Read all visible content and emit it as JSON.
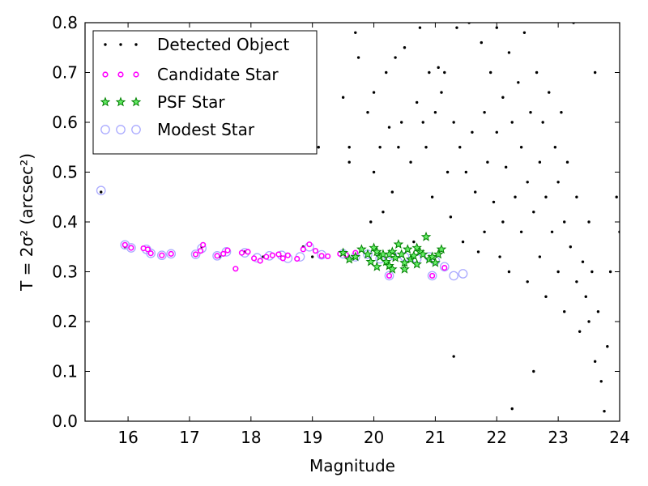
{
  "chart_data": {
    "type": "scatter",
    "title": "",
    "xlabel": "Magnitude",
    "ylabel": "T = 2σ² (arcsec²)",
    "xlim": [
      15.3,
      24.0
    ],
    "ylim": [
      0.0,
      0.8
    ],
    "x_ticks": [
      16,
      17,
      18,
      19,
      20,
      21,
      22,
      23,
      24
    ],
    "y_ticks": [
      0.0,
      0.1,
      0.2,
      0.3,
      0.4,
      0.5,
      0.6,
      0.7,
      0.8
    ],
    "x_tick_labels": [
      "16",
      "17",
      "18",
      "19",
      "20",
      "21",
      "22",
      "23",
      "24"
    ],
    "y_tick_labels": [
      "0.0",
      "0.1",
      "0.2",
      "0.3",
      "0.4",
      "0.5",
      "0.6",
      "0.7",
      "0.8"
    ],
    "grid": false,
    "legend_position": "top-left",
    "legend": [
      {
        "label": "Detected Object",
        "marker": "dot",
        "color": "#000000"
      },
      {
        "label": "Candidate Star",
        "marker": "circle",
        "color": "#ff00ff"
      },
      {
        "label": "PSF Star",
        "marker": "star",
        "color": "#00aa00"
      },
      {
        "label": "Modest Star",
        "marker": "open-circle",
        "color": "#aaaaff"
      }
    ],
    "series": [
      {
        "name": "Detected Object",
        "points": [
          [
            15.56,
            0.46
          ],
          [
            15.95,
            0.35
          ],
          [
            16.05,
            0.35
          ],
          [
            16.28,
            0.345
          ],
          [
            16.35,
            0.34
          ],
          [
            16.55,
            0.333
          ],
          [
            16.7,
            0.335
          ],
          [
            17.1,
            0.335
          ],
          [
            17.2,
            0.35
          ],
          [
            17.5,
            0.33
          ],
          [
            17.75,
            0.305
          ],
          [
            17.9,
            0.34
          ],
          [
            18.2,
            0.33
          ],
          [
            18.5,
            0.33
          ],
          [
            18.85,
            0.35
          ],
          [
            19.0,
            0.33
          ],
          [
            19.25,
            0.33
          ],
          [
            19.1,
            0.55
          ],
          [
            19.5,
            0.65
          ],
          [
            19.6,
            0.52
          ],
          [
            19.6,
            0.55
          ],
          [
            19.7,
            0.78
          ],
          [
            19.75,
            0.73
          ],
          [
            19.9,
            0.62
          ],
          [
            19.95,
            0.4
          ],
          [
            20.0,
            0.5
          ],
          [
            20.0,
            0.66
          ],
          [
            20.1,
            0.55
          ],
          [
            20.15,
            0.42
          ],
          [
            20.2,
            0.7
          ],
          [
            20.25,
            0.59
          ],
          [
            20.3,
            0.46
          ],
          [
            20.35,
            0.73
          ],
          [
            20.4,
            0.55
          ],
          [
            20.45,
            0.6
          ],
          [
            20.5,
            0.75
          ],
          [
            20.6,
            0.52
          ],
          [
            20.65,
            0.36
          ],
          [
            20.7,
            0.64
          ],
          [
            20.75,
            0.79
          ],
          [
            20.8,
            0.6
          ],
          [
            20.85,
            0.55
          ],
          [
            20.9,
            0.7
          ],
          [
            20.95,
            0.45
          ],
          [
            21.0,
            0.62
          ],
          [
            21.05,
            0.71
          ],
          [
            21.1,
            0.66
          ],
          [
            21.15,
            0.7
          ],
          [
            21.2,
            0.5
          ],
          [
            21.25,
            0.41
          ],
          [
            21.3,
            0.6
          ],
          [
            21.3,
            0.13
          ],
          [
            21.35,
            0.79
          ],
          [
            21.4,
            0.55
          ],
          [
            21.45,
            0.36
          ],
          [
            21.5,
            0.5
          ],
          [
            21.55,
            0.8
          ],
          [
            21.6,
            0.58
          ],
          [
            21.65,
            0.46
          ],
          [
            21.7,
            0.34
          ],
          [
            21.75,
            0.76
          ],
          [
            21.8,
            0.62
          ],
          [
            21.8,
            0.38
          ],
          [
            21.85,
            0.52
          ],
          [
            21.9,
            0.7
          ],
          [
            21.95,
            0.44
          ],
          [
            22.0,
            0.58
          ],
          [
            22.0,
            0.79
          ],
          [
            22.05,
            0.33
          ],
          [
            22.1,
            0.65
          ],
          [
            22.1,
            0.4
          ],
          [
            22.15,
            0.51
          ],
          [
            22.2,
            0.74
          ],
          [
            22.2,
            0.3
          ],
          [
            22.25,
            0.6
          ],
          [
            22.25,
            0.025
          ],
          [
            22.3,
            0.45
          ],
          [
            22.35,
            0.68
          ],
          [
            22.4,
            0.38
          ],
          [
            22.4,
            0.55
          ],
          [
            22.45,
            0.78
          ],
          [
            22.5,
            0.48
          ],
          [
            22.5,
            0.28
          ],
          [
            22.55,
            0.62
          ],
          [
            22.6,
            0.42
          ],
          [
            22.6,
            0.1
          ],
          [
            22.65,
            0.7
          ],
          [
            22.7,
            0.52
          ],
          [
            22.7,
            0.33
          ],
          [
            22.75,
            0.6
          ],
          [
            22.8,
            0.45
          ],
          [
            22.8,
            0.25
          ],
          [
            22.85,
            0.66
          ],
          [
            22.9,
            0.38
          ],
          [
            22.95,
            0.55
          ],
          [
            23.0,
            0.48
          ],
          [
            23.0,
            0.3
          ],
          [
            23.05,
            0.62
          ],
          [
            23.1,
            0.4
          ],
          [
            23.1,
            0.22
          ],
          [
            23.15,
            0.52
          ],
          [
            23.2,
            0.35
          ],
          [
            23.25,
            0.8
          ],
          [
            23.3,
            0.45
          ],
          [
            23.3,
            0.28
          ],
          [
            23.35,
            0.18
          ],
          [
            23.4,
            0.32
          ],
          [
            23.45,
            0.25
          ],
          [
            23.5,
            0.4
          ],
          [
            23.5,
            0.2
          ],
          [
            23.55,
            0.3
          ],
          [
            23.6,
            0.12
          ],
          [
            23.6,
            0.7
          ],
          [
            23.65,
            0.22
          ],
          [
            23.7,
            0.08
          ],
          [
            23.75,
            0.02
          ],
          [
            23.8,
            0.15
          ],
          [
            23.85,
            0.3
          ],
          [
            23.95,
            0.45
          ],
          [
            24.0,
            0.38
          ]
        ]
      },
      {
        "name": "Candidate Star",
        "points": [
          [
            15.95,
            0.354
          ],
          [
            16.05,
            0.348
          ],
          [
            16.25,
            0.347
          ],
          [
            16.32,
            0.345
          ],
          [
            16.37,
            0.337
          ],
          [
            16.55,
            0.333
          ],
          [
            16.7,
            0.336
          ],
          [
            17.1,
            0.335
          ],
          [
            17.18,
            0.342
          ],
          [
            17.22,
            0.354
          ],
          [
            17.45,
            0.332
          ],
          [
            17.55,
            0.336
          ],
          [
            17.62,
            0.343
          ],
          [
            17.75,
            0.306
          ],
          [
            17.85,
            0.338
          ],
          [
            17.95,
            0.34
          ],
          [
            18.05,
            0.327
          ],
          [
            18.15,
            0.322
          ],
          [
            18.25,
            0.33
          ],
          [
            18.35,
            0.333
          ],
          [
            18.45,
            0.335
          ],
          [
            18.52,
            0.327
          ],
          [
            18.6,
            0.333
          ],
          [
            18.75,
            0.326
          ],
          [
            18.85,
            0.345
          ],
          [
            18.95,
            0.355
          ],
          [
            19.05,
            0.342
          ],
          [
            19.15,
            0.332
          ],
          [
            19.25,
            0.331
          ],
          [
            19.45,
            0.336
          ],
          [
            19.55,
            0.334
          ],
          [
            19.7,
            0.338
          ],
          [
            20.25,
            0.292
          ],
          [
            20.95,
            0.292
          ],
          [
            21.15,
            0.308
          ]
        ]
      },
      {
        "name": "PSF Star",
        "points": [
          [
            19.5,
            0.338
          ],
          [
            19.6,
            0.325
          ],
          [
            19.7,
            0.33
          ],
          [
            19.8,
            0.345
          ],
          [
            19.9,
            0.335
          ],
          [
            19.95,
            0.32
          ],
          [
            20.0,
            0.348
          ],
          [
            20.05,
            0.31
          ],
          [
            20.1,
            0.33
          ],
          [
            20.15,
            0.335
          ],
          [
            20.2,
            0.32
          ],
          [
            20.25,
            0.312
          ],
          [
            20.3,
            0.34
          ],
          [
            20.35,
            0.328
          ],
          [
            20.4,
            0.355
          ],
          [
            20.45,
            0.335
          ],
          [
            20.5,
            0.318
          ],
          [
            20.55,
            0.345
          ],
          [
            20.6,
            0.325
          ],
          [
            20.65,
            0.332
          ],
          [
            20.7,
            0.315
          ],
          [
            20.75,
            0.34
          ],
          [
            20.8,
            0.335
          ],
          [
            20.85,
            0.37
          ],
          [
            20.9,
            0.325
          ],
          [
            20.95,
            0.33
          ],
          [
            21.0,
            0.318
          ],
          [
            21.05,
            0.335
          ],
          [
            21.1,
            0.345
          ],
          [
            20.05,
            0.34
          ],
          [
            20.3,
            0.305
          ],
          [
            20.5,
            0.305
          ],
          [
            20.7,
            0.348
          ],
          [
            20.25,
            0.335
          ]
        ]
      },
      {
        "name": "Modest Star",
        "points": [
          [
            15.56,
            0.463
          ],
          [
            15.95,
            0.354
          ],
          [
            16.05,
            0.348
          ],
          [
            16.3,
            0.345
          ],
          [
            16.37,
            0.337
          ],
          [
            16.55,
            0.333
          ],
          [
            16.7,
            0.336
          ],
          [
            17.1,
            0.335
          ],
          [
            17.2,
            0.347
          ],
          [
            17.45,
            0.332
          ],
          [
            17.6,
            0.34
          ],
          [
            17.9,
            0.338
          ],
          [
            18.1,
            0.328
          ],
          [
            18.3,
            0.332
          ],
          [
            18.5,
            0.333
          ],
          [
            18.6,
            0.327
          ],
          [
            18.8,
            0.33
          ],
          [
            18.95,
            0.35
          ],
          [
            19.15,
            0.334
          ],
          [
            19.5,
            0.336
          ],
          [
            19.7,
            0.33
          ],
          [
            19.9,
            0.335
          ],
          [
            20.1,
            0.326
          ],
          [
            20.3,
            0.333
          ],
          [
            20.5,
            0.33
          ],
          [
            20.7,
            0.326
          ],
          [
            20.9,
            0.33
          ],
          [
            21.0,
            0.322
          ],
          [
            21.15,
            0.31
          ],
          [
            21.3,
            0.292
          ],
          [
            21.45,
            0.296
          ],
          [
            20.25,
            0.292
          ],
          [
            20.95,
            0.292
          ]
        ]
      }
    ]
  }
}
